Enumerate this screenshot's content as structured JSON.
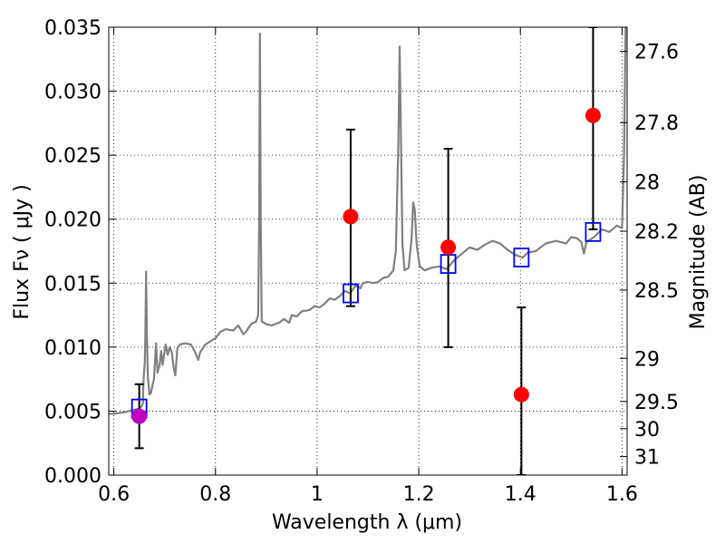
{
  "chart_data": {
    "type": "scatter",
    "title": "",
    "xlabel": "Wavelength  λ (μm)",
    "ylabel": "Flux  Fν  ( μJy )",
    "ylabel_right": "Magnitude (AB)",
    "xlim": [
      0.59,
      1.61
    ],
    "ylim": [
      0.0,
      0.035
    ],
    "grid": true,
    "x_ticks": [
      {
        "value": 0.6,
        "label": "0.6"
      },
      {
        "value": 0.8,
        "label": "0.8"
      },
      {
        "value": 1.0,
        "label": "1"
      },
      {
        "value": 1.2,
        "label": "1.2"
      },
      {
        "value": 1.4,
        "label": "1.4"
      },
      {
        "value": 1.6,
        "label": "1.6"
      }
    ],
    "y_ticks": [
      {
        "value": 0.0,
        "label": "0.000"
      },
      {
        "value": 0.005,
        "label": "0.005"
      },
      {
        "value": 0.01,
        "label": "0.010"
      },
      {
        "value": 0.015,
        "label": "0.015"
      },
      {
        "value": 0.02,
        "label": "0.020"
      },
      {
        "value": 0.025,
        "label": "0.025"
      },
      {
        "value": 0.03,
        "label": "0.030"
      },
      {
        "value": 0.035,
        "label": "0.035"
      }
    ],
    "right_ticks": [
      {
        "label": "27.6",
        "mag": 27.6
      },
      {
        "label": "27.8",
        "mag": 27.8
      },
      {
        "label": "28",
        "mag": 28.0
      },
      {
        "label": "28.2",
        "mag": 28.2
      },
      {
        "label": "28.5",
        "mag": 28.5
      },
      {
        "label": "29",
        "mag": 29.0
      },
      {
        "label": "29.5",
        "mag": 29.5
      },
      {
        "label": "30",
        "mag": 30.0
      },
      {
        "label": "31",
        "mag": 31.0
      }
    ],
    "series": [
      {
        "kind": "line",
        "color": "#808080",
        "points": [
          [
            0.59,
            0.0048
          ],
          [
            0.6,
            0.0048
          ],
          [
            0.62,
            0.0049
          ],
          [
            0.64,
            0.0051
          ],
          [
            0.65,
            0.0052
          ],
          [
            0.655,
            0.0054
          ],
          [
            0.657,
            0.0056
          ],
          [
            0.658,
            0.0068
          ],
          [
            0.659,
            0.0078
          ],
          [
            0.661,
            0.0088
          ],
          [
            0.662,
            0.011
          ],
          [
            0.6635,
            0.0159
          ],
          [
            0.665,
            0.011
          ],
          [
            0.667,
            0.0076
          ],
          [
            0.67,
            0.0063
          ],
          [
            0.673,
            0.0064
          ],
          [
            0.676,
            0.007
          ],
          [
            0.679,
            0.0075
          ],
          [
            0.683,
            0.0103
          ],
          [
            0.686,
            0.008
          ],
          [
            0.69,
            0.0086
          ],
          [
            0.693,
            0.0097
          ],
          [
            0.696,
            0.0086
          ],
          [
            0.699,
            0.0094
          ],
          [
            0.702,
            0.0102
          ],
          [
            0.706,
            0.0094
          ],
          [
            0.71,
            0.01
          ],
          [
            0.714,
            0.0096
          ],
          [
            0.718,
            0.0083
          ],
          [
            0.721,
            0.0078
          ],
          [
            0.725,
            0.0099
          ],
          [
            0.73,
            0.0102
          ],
          [
            0.74,
            0.0103
          ],
          [
            0.752,
            0.0102
          ],
          [
            0.76,
            0.0096
          ],
          [
            0.766,
            0.009
          ],
          [
            0.77,
            0.0096
          ],
          [
            0.78,
            0.0102
          ],
          [
            0.8,
            0.0107
          ],
          [
            0.81,
            0.0112
          ],
          [
            0.82,
            0.0114
          ],
          [
            0.835,
            0.0113
          ],
          [
            0.845,
            0.0117
          ],
          [
            0.855,
            0.011
          ],
          [
            0.86,
            0.0112
          ],
          [
            0.87,
            0.0118
          ],
          [
            0.88,
            0.012
          ],
          [
            0.884,
            0.0125
          ],
          [
            0.886,
            0.02
          ],
          [
            0.8875,
            0.0345
          ],
          [
            0.889,
            0.02
          ],
          [
            0.891,
            0.012
          ],
          [
            0.9,
            0.0118
          ],
          [
            0.91,
            0.0117
          ],
          [
            0.925,
            0.0119
          ],
          [
            0.935,
            0.0122
          ],
          [
            0.945,
            0.0119
          ],
          [
            0.95,
            0.0125
          ],
          [
            0.96,
            0.0124
          ],
          [
            0.97,
            0.0128
          ],
          [
            0.985,
            0.0129
          ],
          [
            0.995,
            0.0132
          ],
          [
            1.005,
            0.0131
          ],
          [
            1.015,
            0.0134
          ],
          [
            1.025,
            0.0138
          ],
          [
            1.035,
            0.0137
          ],
          [
            1.045,
            0.014
          ],
          [
            1.055,
            0.0144
          ],
          [
            1.065,
            0.0142
          ],
          [
            1.075,
            0.0148
          ],
          [
            1.085,
            0.0146
          ],
          [
            1.09,
            0.015
          ],
          [
            1.1,
            0.0151
          ],
          [
            1.11,
            0.015
          ],
          [
            1.12,
            0.0151
          ],
          [
            1.13,
            0.0154
          ],
          [
            1.14,
            0.0155
          ],
          [
            1.15,
            0.016
          ],
          [
            1.155,
            0.0175
          ],
          [
            1.16,
            0.026
          ],
          [
            1.1625,
            0.0335
          ],
          [
            1.165,
            0.026
          ],
          [
            1.168,
            0.018
          ],
          [
            1.172,
            0.016
          ],
          [
            1.18,
            0.0162
          ],
          [
            1.186,
            0.0185
          ],
          [
            1.189,
            0.0213
          ],
          [
            1.192,
            0.0208
          ],
          [
            1.196,
            0.018
          ],
          [
            1.202,
            0.0163
          ],
          [
            1.212,
            0.016
          ],
          [
            1.225,
            0.0162
          ],
          [
            1.24,
            0.0163
          ],
          [
            1.255,
            0.0161
          ],
          [
            1.27,
            0.0168
          ],
          [
            1.285,
            0.0173
          ],
          [
            1.3,
            0.0178
          ],
          [
            1.315,
            0.0176
          ],
          [
            1.33,
            0.018
          ],
          [
            1.345,
            0.0183
          ],
          [
            1.36,
            0.0181
          ],
          [
            1.375,
            0.0176
          ],
          [
            1.39,
            0.0172
          ],
          [
            1.405,
            0.017
          ],
          [
            1.415,
            0.0174
          ],
          [
            1.43,
            0.0175
          ],
          [
            1.45,
            0.0181
          ],
          [
            1.47,
            0.0183
          ],
          [
            1.49,
            0.0181
          ],
          [
            1.5,
            0.0186
          ],
          [
            1.512,
            0.0185
          ],
          [
            1.52,
            0.0182
          ],
          [
            1.525,
            0.0173
          ],
          [
            1.53,
            0.0182
          ],
          [
            1.545,
            0.0186
          ],
          [
            1.56,
            0.0192
          ],
          [
            1.575,
            0.019
          ],
          [
            1.59,
            0.0195
          ],
          [
            1.6,
            0.0193
          ],
          [
            1.604,
            0.025
          ],
          [
            1.607,
            0.035
          ]
        ]
      },
      {
        "kind": "errorbar",
        "marker": "circle",
        "color": "#ff0000",
        "points": [
          {
            "x": 1.066,
            "y": 0.0202,
            "ylow": 0.0132,
            "yhigh": 0.027
          },
          {
            "x": 1.258,
            "y": 0.0178,
            "ylow": 0.01,
            "yhigh": 0.0255
          },
          {
            "x": 1.402,
            "y": 0.0063,
            "ylow": 0.0,
            "yhigh": 0.0131
          },
          {
            "x": 1.543,
            "y": 0.0281,
            "ylow": 0.0192,
            "yhigh": 0.035
          }
        ]
      },
      {
        "kind": "errorbar",
        "marker": "circle",
        "color": "#bf00bf",
        "points": [
          {
            "x": 0.65,
            "y": 0.0046,
            "ylow": 0.0021,
            "yhigh": 0.0071
          }
        ]
      },
      {
        "kind": "markers",
        "marker": "square-open",
        "color": "#0000ff",
        "points": [
          [
            0.65,
            0.0052
          ],
          [
            1.066,
            0.0142
          ],
          [
            1.258,
            0.0165
          ],
          [
            1.402,
            0.017
          ],
          [
            1.543,
            0.019
          ]
        ]
      }
    ]
  }
}
